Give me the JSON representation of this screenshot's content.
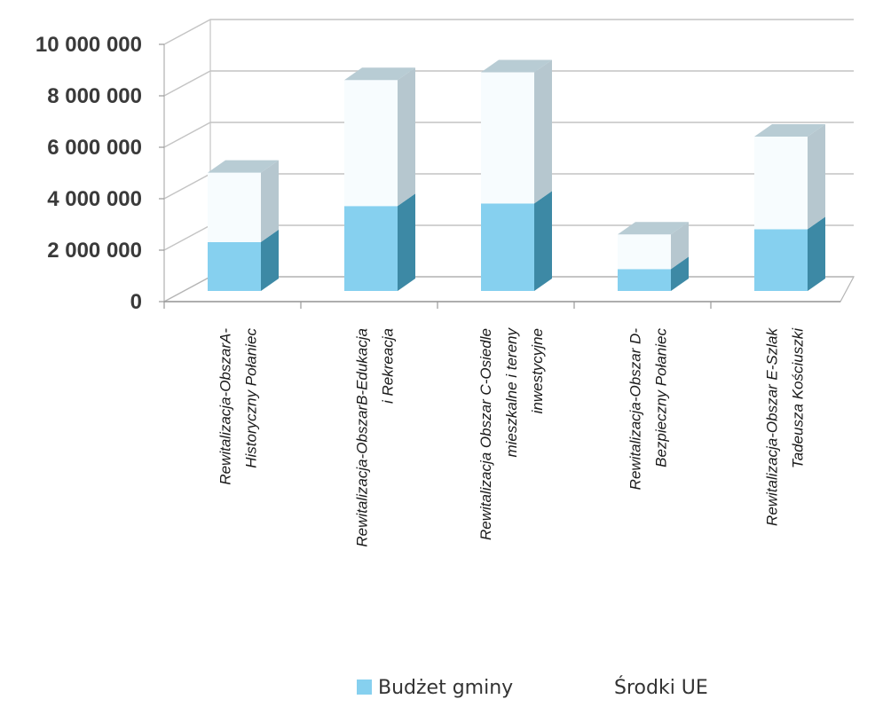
{
  "chart_data": {
    "type": "bar",
    "stacked": true,
    "three_d": true,
    "categories": [
      [
        "Rewitalizacja-ObszarA-",
        "Historyczny Połaniec"
      ],
      [
        "Rewitalizacja-ObszarB-Edukacja",
        "i Rekreacja"
      ],
      [
        "Rewitalizacja Obszar C-Osiedle",
        "mieszkalne i tereny",
        "inwestycyjne"
      ],
      [
        "Rewitalizacja-Obszar D-",
        "Bezpieczny Połaniec"
      ],
      [
        "Rewitalizacja-Obszar E-Szlak",
        "Tadeusza Kościuszki"
      ]
    ],
    "series": [
      {
        "name": "Budżet gminy",
        "values": [
          1900000,
          3300000,
          3400000,
          850000,
          2400000
        ],
        "color": "#86d0ef",
        "side_color": "#3d89a5",
        "top_color": "#a8c9d6"
      },
      {
        "name": "Środki UE",
        "values": [
          2700000,
          4900000,
          5100000,
          1350000,
          3600000
        ],
        "color": "#f7fcfe",
        "side_color": "#b6c7cf",
        "top_color": "#b8ccd4"
      }
    ],
    "y_ticks": [
      "0",
      "2 000 000",
      "4 000 000",
      "6 000 000",
      "8 000 000",
      "10 000 000"
    ],
    "ylim": [
      0,
      10000000
    ],
    "grid": true,
    "legend_position": "bottom",
    "title": "",
    "xlabel": "",
    "ylabel": ""
  }
}
